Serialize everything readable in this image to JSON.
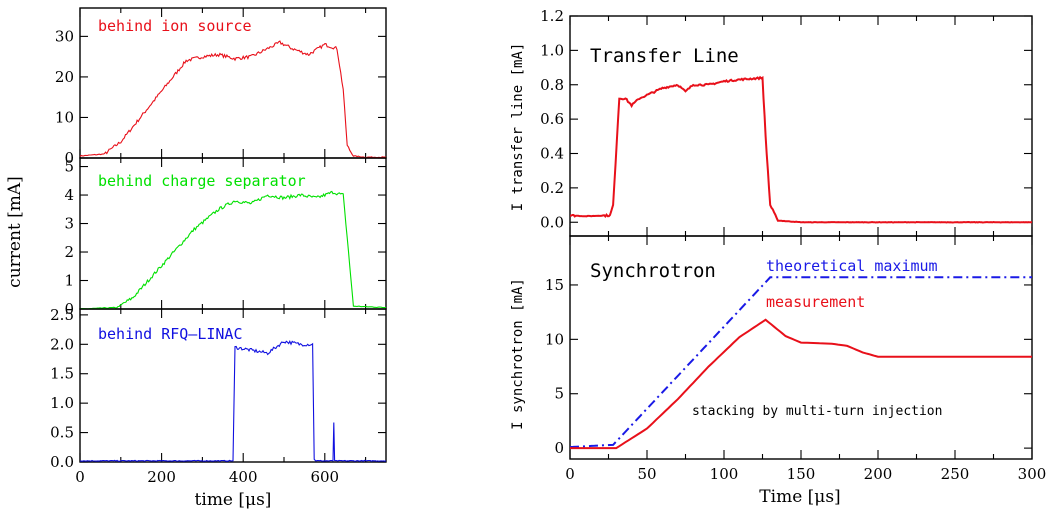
{
  "chart_data": [
    {
      "type": "line",
      "panel": "left-top",
      "annotation": "behind ion source",
      "color": "#e8101a",
      "xlim": [
        0,
        750
      ],
      "ylim": [
        0,
        37
      ],
      "yticks": [
        "0",
        "10",
        "20",
        "30"
      ],
      "series": [
        {
          "x": [
            0,
            60,
            100,
            140,
            180,
            220,
            260,
            300,
            340,
            380,
            420,
            460,
            490,
            520,
            560,
            600,
            630,
            645,
            655,
            670,
            700,
            750
          ],
          "y": [
            0.5,
            1,
            4,
            9,
            14,
            19,
            24,
            25,
            25.5,
            24.5,
            25,
            27,
            28.5,
            27,
            25.5,
            28,
            27,
            17,
            3,
            0.5,
            0.2,
            0.2
          ]
        }
      ]
    },
    {
      "type": "line",
      "panel": "left-middle",
      "annotation": "behind charge separator",
      "color": "#00e000",
      "xlim": [
        0,
        750
      ],
      "ylim": [
        0,
        5.3
      ],
      "yticks": [
        "0",
        "1",
        "2",
        "3",
        "4",
        "5"
      ],
      "series": [
        {
          "x": [
            0,
            90,
            130,
            180,
            230,
            280,
            340,
            380,
            420,
            460,
            500,
            540,
            580,
            620,
            645,
            655,
            670,
            750
          ],
          "y": [
            0,
            0.05,
            0.4,
            1.2,
            2.0,
            2.8,
            3.5,
            3.8,
            3.7,
            4.0,
            3.9,
            4.0,
            3.9,
            4.1,
            4.0,
            2.5,
            0.1,
            0.05
          ]
        }
      ]
    },
    {
      "type": "line",
      "panel": "left-bottom",
      "annotation": "behind RFQ–LINAC",
      "color": "#1010e0",
      "xlim": [
        0,
        750
      ],
      "ylim": [
        0,
        2.6
      ],
      "yticks": [
        "0.0",
        "0.5",
        "1.0",
        "1.5",
        "2.0",
        "2.5"
      ],
      "xticks": [
        "0",
        "200",
        "400",
        "600"
      ],
      "xlabel": "time  [μs]",
      "series": [
        {
          "x": [
            0,
            375,
            380,
            420,
            460,
            500,
            540,
            570,
            574,
            578,
            620,
            622,
            624,
            626,
            750
          ],
          "y": [
            0.02,
            0.02,
            1.95,
            1.9,
            1.85,
            2.05,
            2.0,
            2.0,
            0.05,
            0.02,
            0.02,
            0.68,
            0.02,
            0.02,
            0.02
          ]
        }
      ]
    },
    {
      "type": "line",
      "panel": "right-top",
      "title": "Transfer Line",
      "ylabel": "I transfer line [mA]",
      "color": "#e8101a",
      "xlim": [
        0,
        300
      ],
      "ylim": [
        -0.08,
        1.2
      ],
      "yticks": [
        "0.0",
        "0.2",
        "0.4",
        "0.6",
        "0.8",
        "1.0",
        "1.2"
      ],
      "series": [
        {
          "x": [
            0,
            10,
            26,
            28,
            32,
            36,
            40,
            45,
            50,
            60,
            70,
            75,
            80,
            90,
            100,
            110,
            125,
            127,
            130,
            135,
            150,
            200,
            250,
            300
          ],
          "y": [
            0.04,
            0.035,
            0.04,
            0.1,
            0.72,
            0.72,
            0.68,
            0.72,
            0.74,
            0.78,
            0.8,
            0.76,
            0.8,
            0.8,
            0.82,
            0.83,
            0.84,
            0.5,
            0.1,
            0.01,
            0.0,
            0.0,
            0.0,
            0.0
          ]
        }
      ]
    },
    {
      "type": "line",
      "panel": "right-bottom",
      "title": "Synchrotron",
      "ylabel": "I synchrotron [mA]",
      "xlabel": "Time [μs]",
      "xlim": [
        0,
        300
      ],
      "ylim": [
        -1,
        19.5
      ],
      "yticks": [
        "0",
        "5",
        "10",
        "15"
      ],
      "xticks": [
        "0",
        "50",
        "100",
        "150",
        "200",
        "250",
        "300"
      ],
      "annotations": [
        "theoretical maximum",
        "measurement",
        "stacking by multi-turn injection"
      ],
      "series": [
        {
          "name": "theoretical maximum",
          "color": "#1a1ae6",
          "dash": "dashdot",
          "x": [
            0,
            28,
            130,
            300
          ],
          "y": [
            0.1,
            0.3,
            15.7,
            15.7
          ]
        },
        {
          "name": "measurement",
          "color": "#e8101a",
          "x": [
            0,
            30,
            50,
            70,
            90,
            110,
            127,
            140,
            150,
            170,
            180,
            190,
            200,
            250,
            300
          ],
          "y": [
            0,
            0,
            1.8,
            4.5,
            7.5,
            10.2,
            11.8,
            10.3,
            9.7,
            9.6,
            9.4,
            8.8,
            8.4,
            8.4,
            8.4
          ]
        }
      ]
    }
  ],
  "left_shared": {
    "ylabel": "current  [mA]"
  }
}
